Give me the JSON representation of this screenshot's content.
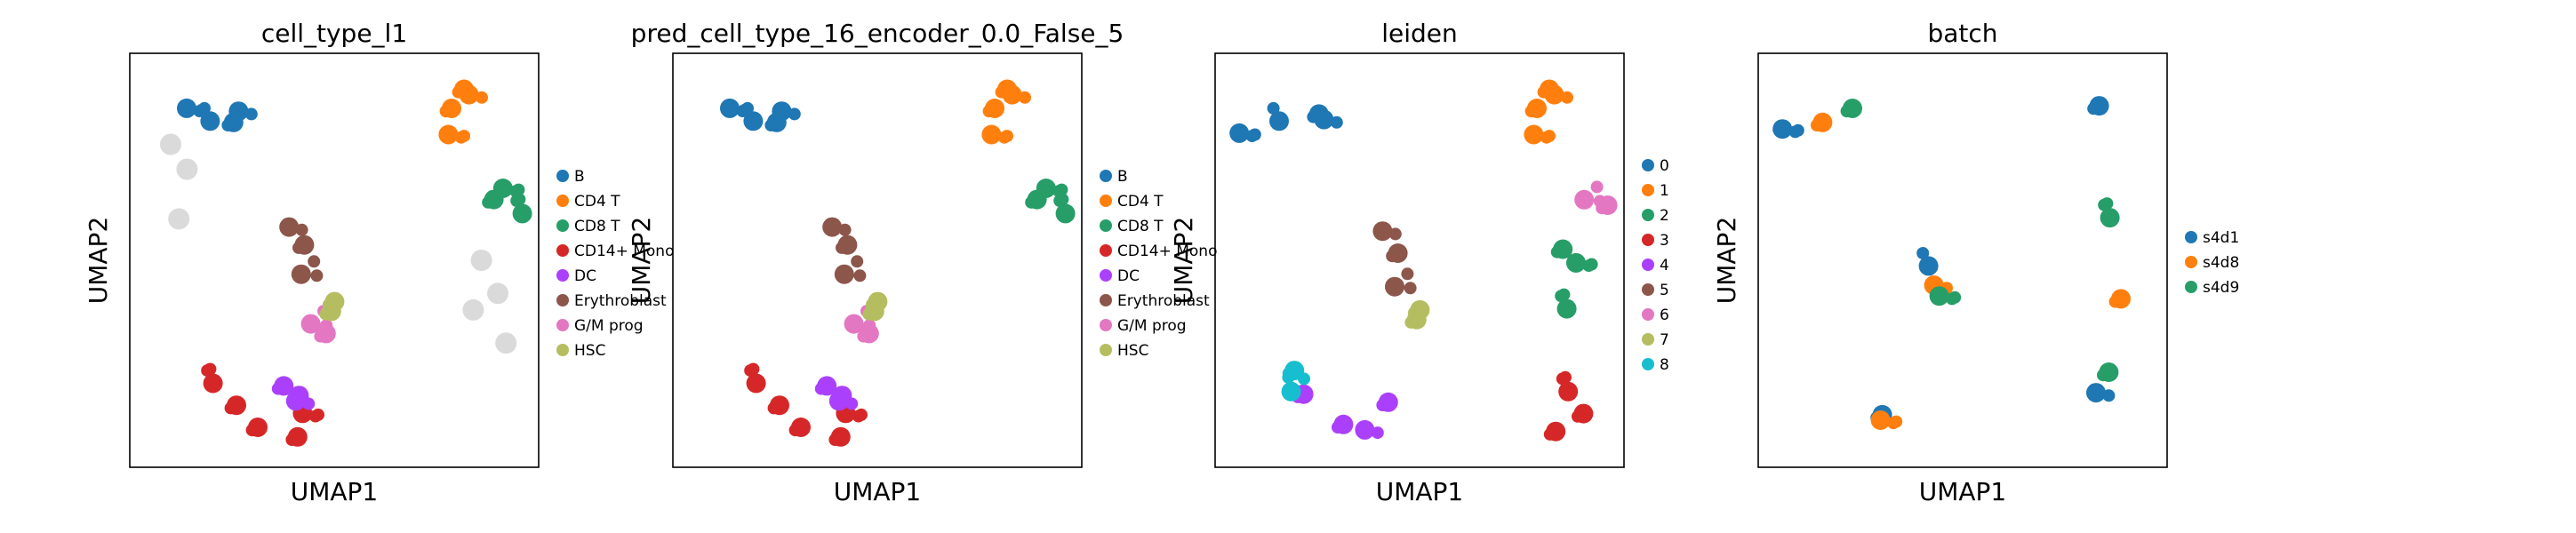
{
  "figure": {
    "background": "#ffffff",
    "panels": [
      {
        "title": "cell_type_l1",
        "xlabel": "UMAP1",
        "ylabel": "UMAP2",
        "legend": [
          {
            "label": "B",
            "color": "#1f77b4"
          },
          {
            "label": "CD4 T",
            "color": "#ff7f0e"
          },
          {
            "label": "CD8 T",
            "color": "#279e68"
          },
          {
            "label": "CD14+ Mono",
            "color": "#d62728"
          },
          {
            "label": "DC",
            "color": "#aa40fc"
          },
          {
            "label": "Erythroblast",
            "color": "#8c564b"
          },
          {
            "label": "G/M prog",
            "color": "#e377c2"
          },
          {
            "label": "HSC",
            "color": "#b5bd61"
          }
        ]
      },
      {
        "title": "pred_cell_type_16_encoder_0.0_False_5",
        "xlabel": "UMAP1",
        "ylabel": "UMAP2",
        "legend": [
          {
            "label": "B",
            "color": "#1f77b4"
          },
          {
            "label": "CD4 T",
            "color": "#ff7f0e"
          },
          {
            "label": "CD8 T",
            "color": "#279e68"
          },
          {
            "label": "CD14+ Mono",
            "color": "#d62728"
          },
          {
            "label": "DC",
            "color": "#aa40fc"
          },
          {
            "label": "Erythroblast",
            "color": "#8c564b"
          },
          {
            "label": "G/M prog",
            "color": "#e377c2"
          },
          {
            "label": "HSC",
            "color": "#b5bd61"
          }
        ]
      },
      {
        "title": "leiden",
        "xlabel": "UMAP1",
        "ylabel": "UMAP2",
        "legend": [
          {
            "label": "0",
            "color": "#1f77b4"
          },
          {
            "label": "1",
            "color": "#ff7f0e"
          },
          {
            "label": "2",
            "color": "#279e68"
          },
          {
            "label": "3",
            "color": "#d62728"
          },
          {
            "label": "4",
            "color": "#aa40fc"
          },
          {
            "label": "5",
            "color": "#8c564b"
          },
          {
            "label": "6",
            "color": "#e377c2"
          },
          {
            "label": "7",
            "color": "#b5bd61"
          },
          {
            "label": "8",
            "color": "#17becf"
          }
        ]
      },
      {
        "title": "batch",
        "xlabel": "UMAP1",
        "ylabel": "UMAP2",
        "legend": [
          {
            "label": "s4d1",
            "color": "#1f77b4"
          },
          {
            "label": "s4d8",
            "color": "#ff7f0e"
          },
          {
            "label": "s4d9",
            "color": "#279e68"
          }
        ]
      }
    ]
  },
  "chart_data": [
    {
      "type": "scatter",
      "title": "cell_type_l1",
      "xlabel": "UMAP1",
      "ylabel": "UMAP2",
      "x_ticks": false,
      "y_ticks": false,
      "grid": false,
      "legend_position": "right",
      "legend": [
        "B",
        "CD4 T",
        "CD8 T",
        "CD14+ Mono",
        "DC",
        "Erythroblast",
        "G/M prog",
        "HSC"
      ],
      "na_color": "#d3d3d3",
      "series": [
        {
          "name": "B",
          "color": "#1f77b4",
          "points": [
            [
              0.16,
              0.85
            ],
            [
              0.2,
              0.85
            ],
            [
              0.24,
              0.84
            ],
            [
              0.28,
              0.86
            ]
          ]
        },
        {
          "name": "CD4 T",
          "color": "#ff7f0e",
          "points": [
            [
              0.8,
              0.92
            ],
            [
              0.84,
              0.9
            ],
            [
              0.78,
              0.86
            ],
            [
              0.8,
              0.79
            ]
          ]
        },
        {
          "name": "CD8 T",
          "color": "#279e68",
          "points": [
            [
              0.88,
              0.64
            ],
            [
              0.93,
              0.66
            ],
            [
              0.96,
              0.63
            ]
          ]
        },
        {
          "name": "CD14+ Mono",
          "color": "#d62728",
          "points": [
            [
              0.2,
              0.22
            ],
            [
              0.24,
              0.16
            ],
            [
              0.32,
              0.1
            ],
            [
              0.4,
              0.07
            ],
            [
              0.44,
              0.12
            ]
          ]
        },
        {
          "name": "DC",
          "color": "#aa40fc",
          "points": [
            [
              0.38,
              0.2
            ],
            [
              0.4,
              0.17
            ],
            [
              0.42,
              0.15
            ]
          ]
        },
        {
          "name": "Erythroblast",
          "color": "#8c564b",
          "points": [
            [
              0.4,
              0.57
            ],
            [
              0.42,
              0.52
            ],
            [
              0.44,
              0.48
            ]
          ]
        },
        {
          "name": "G/M prog",
          "color": "#e377c2",
          "points": [
            [
              0.46,
              0.36
            ],
            [
              0.48,
              0.33
            ]
          ]
        },
        {
          "name": "HSC",
          "color": "#b5bd61",
          "points": [
            [
              0.48,
              0.4
            ],
            [
              0.5,
              0.37
            ]
          ]
        }
      ]
    },
    {
      "type": "scatter",
      "title": "pred_cell_type_16_encoder_0.0_False_5",
      "xlabel": "UMAP1",
      "ylabel": "UMAP2",
      "x_ticks": false,
      "y_ticks": false,
      "grid": false,
      "legend_position": "right",
      "legend": [
        "B",
        "CD4 T",
        "CD8 T",
        "CD14+ Mono",
        "DC",
        "Erythroblast",
        "G/M prog",
        "HSC"
      ],
      "series": [
        {
          "name": "B",
          "color": "#1f77b4",
          "points": [
            [
              0.16,
              0.85
            ],
            [
              0.2,
              0.85
            ],
            [
              0.24,
              0.84
            ],
            [
              0.28,
              0.86
            ]
          ]
        },
        {
          "name": "CD4 T",
          "color": "#ff7f0e",
          "points": [
            [
              0.8,
              0.92
            ],
            [
              0.84,
              0.9
            ],
            [
              0.78,
              0.86
            ],
            [
              0.8,
              0.79
            ]
          ]
        },
        {
          "name": "CD8 T",
          "color": "#279e68",
          "points": [
            [
              0.88,
              0.64
            ],
            [
              0.93,
              0.66
            ],
            [
              0.96,
              0.63
            ]
          ]
        },
        {
          "name": "CD14+ Mono",
          "color": "#d62728",
          "points": [
            [
              0.2,
              0.22
            ],
            [
              0.24,
              0.16
            ],
            [
              0.32,
              0.1
            ],
            [
              0.4,
              0.07
            ],
            [
              0.44,
              0.12
            ]
          ]
        },
        {
          "name": "DC",
          "color": "#aa40fc",
          "points": [
            [
              0.38,
              0.2
            ],
            [
              0.4,
              0.17
            ],
            [
              0.42,
              0.15
            ]
          ]
        },
        {
          "name": "Erythroblast",
          "color": "#8c564b",
          "points": [
            [
              0.4,
              0.57
            ],
            [
              0.42,
              0.52
            ],
            [
              0.44,
              0.48
            ]
          ]
        },
        {
          "name": "G/M prog",
          "color": "#e377c2",
          "points": [
            [
              0.46,
              0.36
            ],
            [
              0.48,
              0.33
            ]
          ]
        },
        {
          "name": "HSC",
          "color": "#b5bd61",
          "points": [
            [
              0.48,
              0.4
            ],
            [
              0.5,
              0.37
            ]
          ]
        }
      ]
    },
    {
      "type": "scatter",
      "title": "leiden",
      "xlabel": "UMAP1",
      "ylabel": "UMAP2",
      "x_ticks": false,
      "y_ticks": false,
      "grid": false,
      "legend_position": "right",
      "legend": [
        "0",
        "1",
        "2",
        "3",
        "4",
        "5",
        "6",
        "7",
        "8"
      ],
      "series": [
        {
          "name": "0",
          "color": "#1f77b4",
          "points": [
            [
              0.08,
              0.79
            ],
            [
              0.16,
              0.85
            ],
            [
              0.24,
              0.86
            ],
            [
              0.28,
              0.84
            ]
          ]
        },
        {
          "name": "1",
          "color": "#ff7f0e",
          "points": [
            [
              0.8,
              0.92
            ],
            [
              0.84,
              0.9
            ],
            [
              0.78,
              0.86
            ],
            [
              0.8,
              0.79
            ]
          ]
        },
        {
          "name": "2",
          "color": "#279e68",
          "points": [
            [
              0.84,
              0.52
            ],
            [
              0.9,
              0.48
            ],
            [
              0.86,
              0.4
            ]
          ]
        },
        {
          "name": "3",
          "color": "#d62728",
          "points": [
            [
              0.86,
              0.2
            ],
            [
              0.88,
              0.14
            ],
            [
              0.84,
              0.09
            ]
          ]
        },
        {
          "name": "4",
          "color": "#aa40fc",
          "points": [
            [
              0.22,
              0.18
            ],
            [
              0.3,
              0.1
            ],
            [
              0.38,
              0.08
            ],
            [
              0.42,
              0.14
            ]
          ]
        },
        {
          "name": "5",
          "color": "#8c564b",
          "points": [
            [
              0.42,
              0.56
            ],
            [
              0.44,
              0.5
            ],
            [
              0.46,
              0.45
            ]
          ]
        },
        {
          "name": "6",
          "color": "#e377c2",
          "points": [
            [
              0.92,
              0.66
            ],
            [
              0.96,
              0.64
            ]
          ]
        },
        {
          "name": "7",
          "color": "#b5bd61",
          "points": [
            [
              0.48,
              0.38
            ],
            [
              0.5,
              0.35
            ]
          ]
        },
        {
          "name": "8",
          "color": "#17becf",
          "points": [
            [
              0.18,
              0.22
            ],
            [
              0.2,
              0.2
            ]
          ]
        }
      ]
    },
    {
      "type": "scatter",
      "title": "batch",
      "xlabel": "UMAP1",
      "ylabel": "UMAP2",
      "x_ticks": false,
      "y_ticks": false,
      "grid": false,
      "legend_position": "right",
      "legend": [
        "s4d1",
        "s4d8",
        "s4d9"
      ],
      "series": [
        {
          "name": "s4d1",
          "color": "#1f77b4",
          "points": [
            [
              0.08,
              0.8
            ],
            [
              0.42,
              0.5
            ],
            [
              0.82,
              0.88
            ],
            [
              0.84,
              0.18
            ],
            [
              0.3,
              0.12
            ]
          ]
        },
        {
          "name": "s4d8",
          "color": "#ff7f0e",
          "points": [
            [
              0.14,
              0.84
            ],
            [
              0.44,
              0.44
            ],
            [
              0.88,
              0.4
            ],
            [
              0.32,
              0.1
            ]
          ]
        },
        {
          "name": "s4d9",
          "color": "#279e68",
          "points": [
            [
              0.22,
              0.86
            ],
            [
              0.46,
              0.4
            ],
            [
              0.86,
              0.62
            ],
            [
              0.84,
              0.24
            ]
          ]
        }
      ]
    }
  ]
}
